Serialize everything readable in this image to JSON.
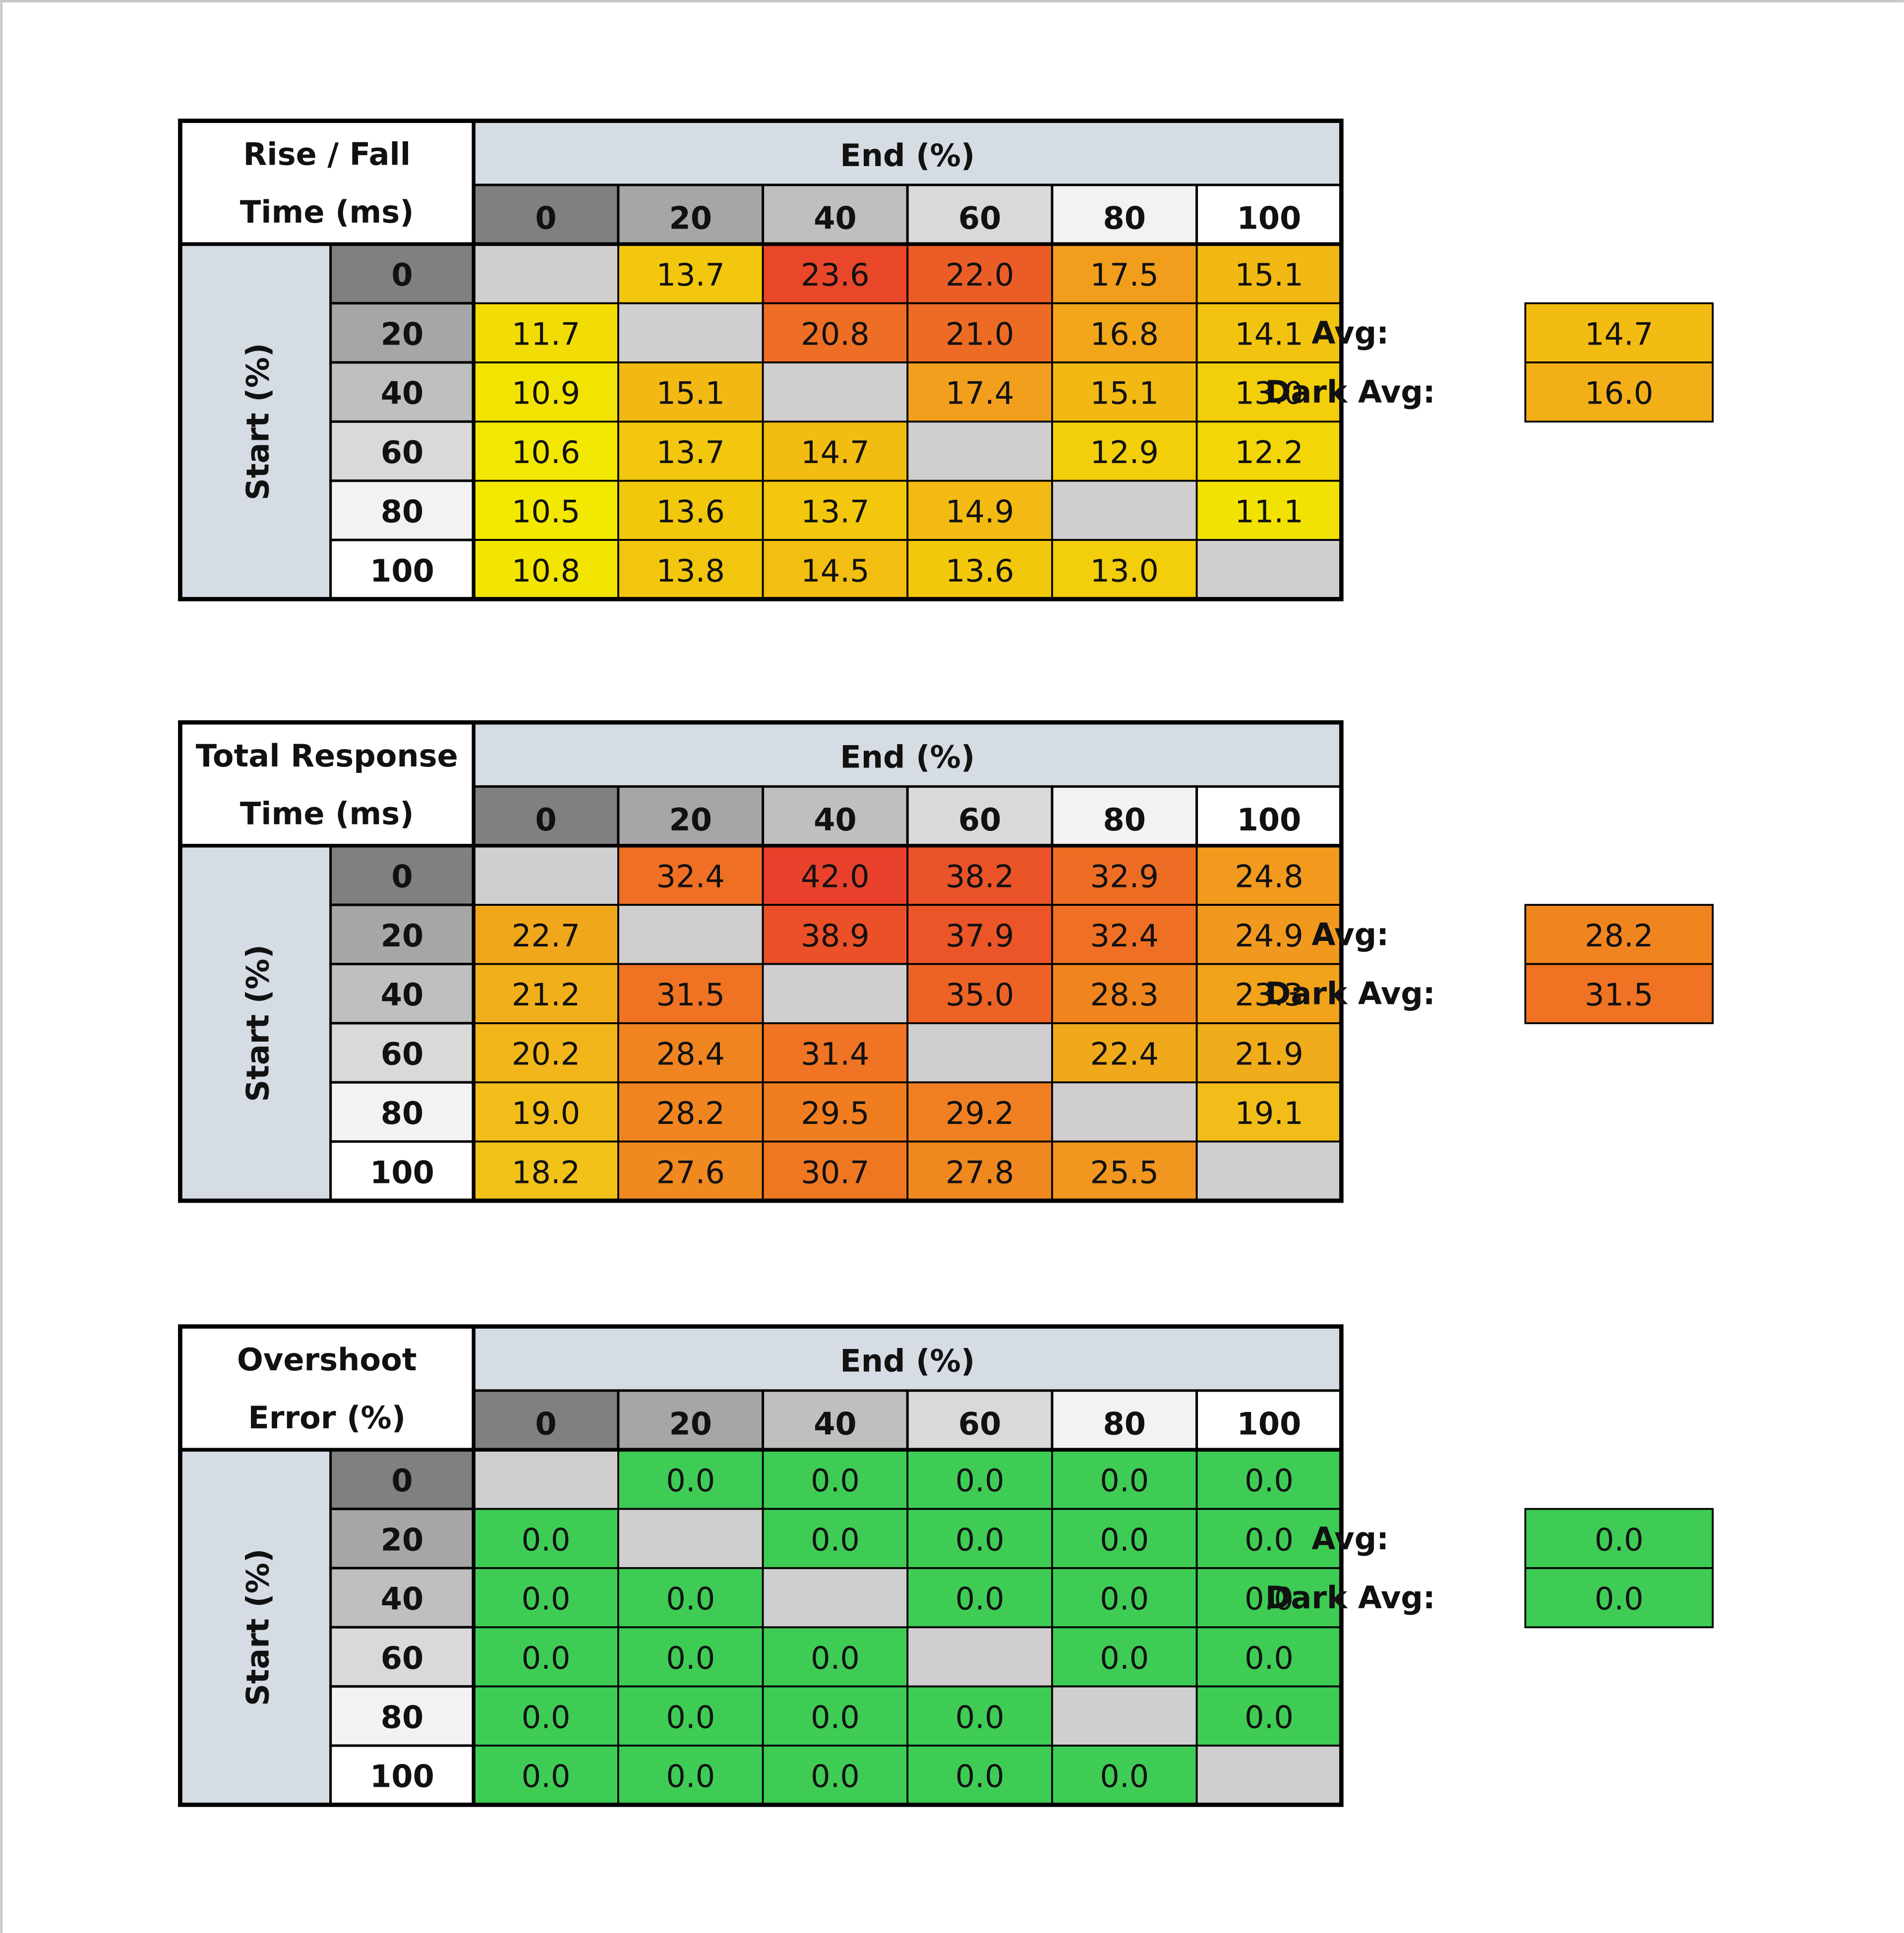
{
  "tables": [
    {
      "title": [
        "Rise / Fall",
        "Time (ms)"
      ],
      "end_label": "End (%)",
      "start_label": "Start (%)",
      "columns": [
        0,
        20,
        40,
        60,
        80,
        100
      ],
      "rows": [
        {
          "label": 0,
          "cells": [
            null,
            "13.7",
            "23.6",
            "22.0",
            "17.5",
            "15.1"
          ]
        },
        {
          "label": 20,
          "cells": [
            "11.7",
            null,
            "20.8",
            "21.0",
            "16.8",
            "14.1"
          ]
        },
        {
          "label": 40,
          "cells": [
            "10.9",
            "15.1",
            null,
            "17.4",
            "15.1",
            "13.0"
          ]
        },
        {
          "label": 60,
          "cells": [
            "10.6",
            "13.7",
            "14.7",
            null,
            "12.9",
            "12.2"
          ]
        },
        {
          "label": 80,
          "cells": [
            "10.5",
            "13.6",
            "13.7",
            "14.9",
            null,
            "11.1"
          ]
        },
        {
          "label": 100,
          "cells": [
            "10.8",
            "13.8",
            "14.5",
            "13.6",
            "13.0",
            null
          ]
        }
      ],
      "avg_label": "Avg:",
      "avg": "14.7",
      "dark_avg_label": "Dark Avg:",
      "dark_avg": "16.0",
      "colors": [
        "#f2e800",
        "#f2a41c",
        "#e9462a"
      ]
    },
    {
      "title": [
        "Total Response",
        "Time (ms)"
      ],
      "end_label": "End (%)",
      "start_label": "Start (%)",
      "columns": [
        0,
        20,
        40,
        60,
        80,
        100
      ],
      "rows": [
        {
          "label": 0,
          "cells": [
            null,
            "32.4",
            "42.0",
            "38.2",
            "32.9",
            "24.8"
          ]
        },
        {
          "label": 20,
          "cells": [
            "22.7",
            null,
            "38.9",
            "37.9",
            "32.4",
            "24.9"
          ]
        },
        {
          "label": 40,
          "cells": [
            "21.2",
            "31.5",
            null,
            "35.0",
            "28.3",
            "23.3"
          ]
        },
        {
          "label": 60,
          "cells": [
            "20.2",
            "28.4",
            "31.4",
            null,
            "22.4",
            "21.9"
          ]
        },
        {
          "label": 80,
          "cells": [
            "19.0",
            "28.2",
            "29.5",
            "29.2",
            null,
            "19.1"
          ]
        },
        {
          "label": 100,
          "cells": [
            "18.2",
            "27.6",
            "30.7",
            "27.8",
            "25.5",
            null
          ]
        }
      ],
      "avg_label": "Avg:",
      "avg": "28.2",
      "dark_avg_label": "Dark Avg:",
      "dark_avg": "31.5",
      "colors": [
        "#f2c218",
        "#f07a22",
        "#e9412b"
      ]
    },
    {
      "title": [
        "Overshoot",
        "Error (%)"
      ],
      "end_label": "End (%)",
      "start_label": "Start (%)",
      "columns": [
        0,
        20,
        40,
        60,
        80,
        100
      ],
      "rows": [
        {
          "label": 0,
          "cells": [
            null,
            "0.0",
            "0.0",
            "0.0",
            "0.0",
            "0.0"
          ]
        },
        {
          "label": 20,
          "cells": [
            "0.0",
            null,
            "0.0",
            "0.0",
            "0.0",
            "0.0"
          ]
        },
        {
          "label": 40,
          "cells": [
            "0.0",
            "0.0",
            null,
            "0.0",
            "0.0",
            "0.0"
          ]
        },
        {
          "label": 60,
          "cells": [
            "0.0",
            "0.0",
            "0.0",
            null,
            "0.0",
            "0.0"
          ]
        },
        {
          "label": 80,
          "cells": [
            "0.0",
            "0.0",
            "0.0",
            "0.0",
            null,
            "0.0"
          ]
        },
        {
          "label": 100,
          "cells": [
            "0.0",
            "0.0",
            "0.0",
            "0.0",
            "0.0",
            null
          ]
        }
      ],
      "avg_label": "Avg:",
      "avg": "0.0",
      "dark_avg_label": "Dark Avg:",
      "dark_avg": "0.0",
      "colors": [
        "#3ecc55"
      ]
    }
  ]
}
